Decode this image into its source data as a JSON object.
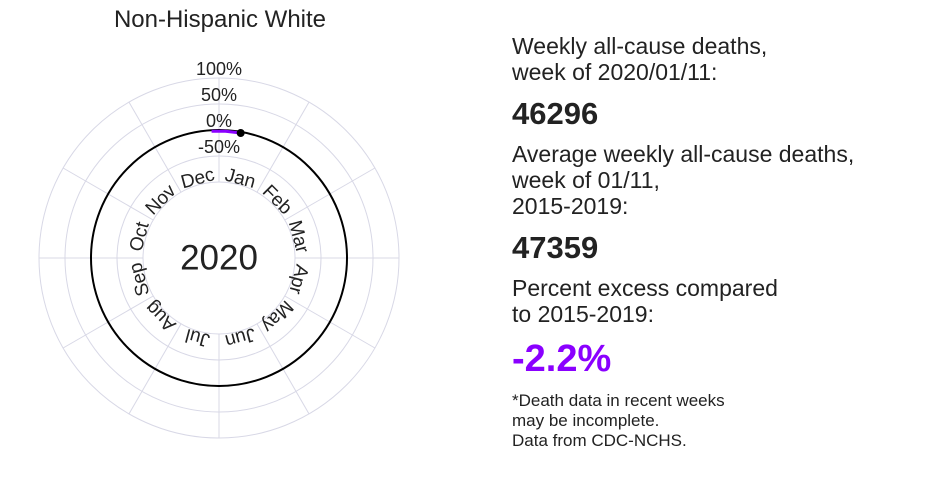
{
  "chart_data": {
    "type": "polar-line",
    "title": "Non-Hispanic White",
    "center_label": "2020",
    "radial_tick_labels": [
      "100%",
      "50%",
      "0%",
      "-50%"
    ],
    "radial_ticks": [
      100,
      50,
      0,
      -50
    ],
    "radial_range": [
      -100,
      100
    ],
    "months": [
      "Jan",
      "Feb",
      "Mar",
      "Apr",
      "May",
      "Jun",
      "Jul",
      "Aug",
      "Sep",
      "Oct",
      "Nov",
      "Dec"
    ],
    "grid": true,
    "series": [
      {
        "color": "#8a00ff",
        "points": [
          {
            "week_of": "2020/01/04",
            "percent_excess": -2.0
          },
          {
            "week_of": "2020/01/11",
            "percent_excess": -2.2
          }
        ]
      }
    ],
    "current_marker": {
      "week_of": "2020/01/11",
      "percent_excess": -2.2
    }
  },
  "info": {
    "weekly_label": "Weekly all-cause deaths,\nweek of 2020/01/11:",
    "weekly_value": "46296",
    "average_label": "Average weekly all-cause deaths,\nweek of 01/11,\n2015-2019:",
    "average_value": "47359",
    "excess_label": "Percent excess compared\nto 2015-2019:",
    "excess_value": "-2.2%",
    "excess_color": "#8a00ff",
    "note": "*Death data in recent weeks\nmay be incomplete.\nData from CDC-NCHS."
  },
  "colors": {
    "grid": "#d8d8e6",
    "zero_circle": "#000000",
    "series": "#8a00ff",
    "text": "#222222"
  }
}
